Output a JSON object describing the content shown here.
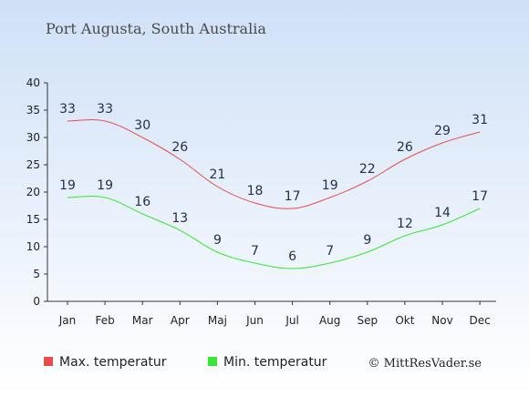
{
  "chart_data": {
    "type": "line",
    "title": "Port Augusta, South Australia",
    "categories": [
      "Jan",
      "Feb",
      "Mar",
      "Apr",
      "Maj",
      "Jun",
      "Jul",
      "Aug",
      "Sep",
      "Okt",
      "Nov",
      "Dec"
    ],
    "series": [
      {
        "name": "Max. temperatur",
        "color": "#e84c4c",
        "values": [
          33,
          33,
          30,
          26,
          21,
          18,
          17,
          19,
          22,
          26,
          29,
          31
        ]
      },
      {
        "name": "Min. temperatur",
        "color": "#37e637",
        "values": [
          19,
          19,
          16,
          13,
          9,
          7,
          6,
          7,
          9,
          12,
          14,
          17
        ]
      }
    ],
    "ylim": [
      0,
      40
    ],
    "yticks": [
      0,
      5,
      10,
      15,
      20,
      25,
      30,
      35,
      40
    ],
    "legend": "bottom-left",
    "grid": false
  },
  "credit": "© MittResVader.se"
}
